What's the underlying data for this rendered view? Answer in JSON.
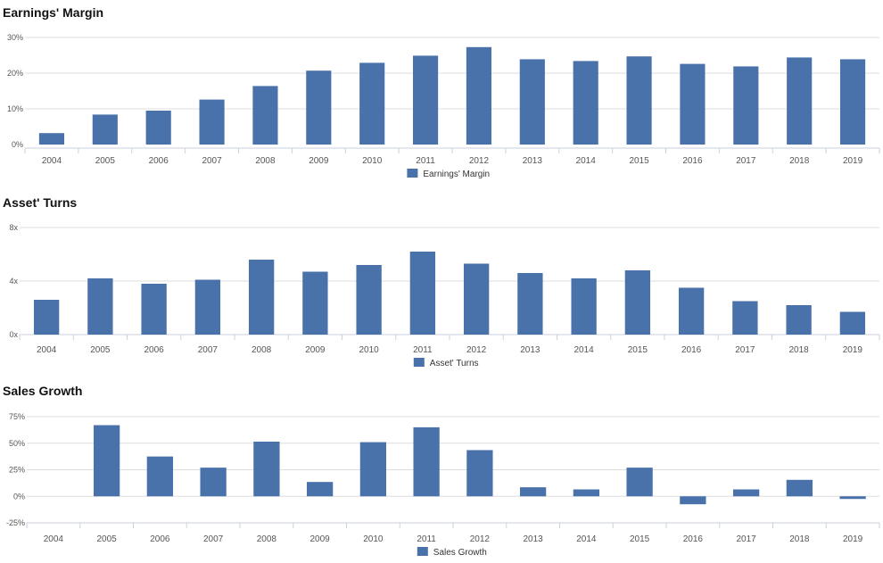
{
  "chart_data": [
    {
      "type": "bar",
      "title": "Earnings' Margin",
      "categories": [
        "2004",
        "2005",
        "2006",
        "2007",
        "2008",
        "2009",
        "2010",
        "2011",
        "2012",
        "2013",
        "2014",
        "2015",
        "2016",
        "2017",
        "2018",
        "2019"
      ],
      "series": [
        {
          "name": "Earnings' Margin",
          "values": [
            3.2,
            8.4,
            9.5,
            12.6,
            16.4,
            20.7,
            22.9,
            24.9,
            27.3,
            23.9,
            23.4,
            24.7,
            22.6,
            21.9,
            24.4,
            23.9
          ]
        }
      ],
      "ylim": [
        0,
        30
      ],
      "yticks": [
        {
          "value": 0,
          "label": "0%"
        },
        {
          "value": 10,
          "label": "10%"
        },
        {
          "value": 20,
          "label": "20%"
        },
        {
          "value": 30,
          "label": "30%"
        }
      ],
      "grid": true,
      "legend": "bottom-center",
      "color": "#4a72aa"
    },
    {
      "type": "bar",
      "title": "Asset' Turns",
      "categories": [
        "2004",
        "2005",
        "2006",
        "2007",
        "2008",
        "2009",
        "2010",
        "2011",
        "2012",
        "2013",
        "2014",
        "2015",
        "2016",
        "2017",
        "2018",
        "2019"
      ],
      "series": [
        {
          "name": "Asset' Turns",
          "values": [
            2.6,
            4.2,
            3.8,
            4.1,
            5.6,
            4.7,
            5.2,
            6.2,
            5.3,
            4.6,
            4.2,
            4.8,
            3.5,
            2.5,
            2.2,
            1.7
          ]
        }
      ],
      "ylim": [
        0,
        8
      ],
      "yticks": [
        {
          "value": 0,
          "label": "0x"
        },
        {
          "value": 4,
          "label": "4x"
        },
        {
          "value": 8,
          "label": "8x"
        }
      ],
      "grid": true,
      "legend": "bottom-center",
      "color": "#4a72aa"
    },
    {
      "type": "bar",
      "title": "Sales Growth",
      "categories": [
        "2004",
        "2005",
        "2006",
        "2007",
        "2008",
        "2009",
        "2010",
        "2011",
        "2012",
        "2013",
        "2014",
        "2015",
        "2016",
        "2017",
        "2018",
        "2019"
      ],
      "series": [
        {
          "name": "Sales Growth",
          "values": [
            null,
            67,
            37.5,
            27,
            51.5,
            13.5,
            51,
            65,
            43.5,
            8.5,
            6.5,
            27,
            -7.5,
            6.5,
            15.5,
            -2.5
          ]
        }
      ],
      "ylim": [
        -25,
        75
      ],
      "yticks": [
        {
          "value": -25,
          "label": "-25%"
        },
        {
          "value": 0,
          "label": "0%"
        },
        {
          "value": 25,
          "label": "25%"
        },
        {
          "value": 50,
          "label": "50%"
        },
        {
          "value": 75,
          "label": "75%"
        }
      ],
      "grid": true,
      "legend": "bottom-center",
      "color": "#4a72aa"
    }
  ]
}
